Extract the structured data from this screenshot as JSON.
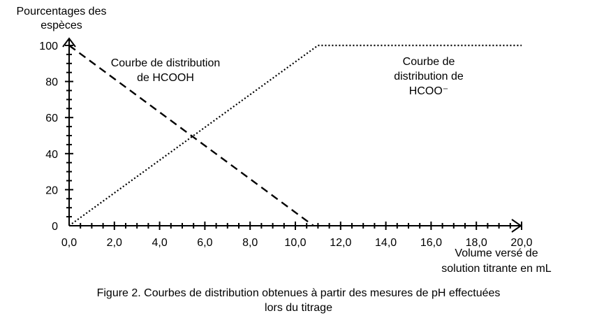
{
  "chart_data": {
    "type": "line",
    "ylabel": [
      "Pourcentages des",
      "espèces"
    ],
    "xlabel": [
      "Volume versé de",
      "solution titrante en mL"
    ],
    "xlim": [
      0,
      20
    ],
    "ylim": [
      0,
      100
    ],
    "x_ticks": [
      "0,0",
      "2,0",
      "4,0",
      "6,0",
      "8,0",
      "10,0",
      "12,0",
      "14,0",
      "16,0",
      "18,0",
      "20,0"
    ],
    "y_ticks": [
      "0",
      "20",
      "40",
      "60",
      "80",
      "100"
    ],
    "grid": false,
    "series": [
      {
        "name": "Courbe de distribution de HCOOH",
        "style": "dashed",
        "x": [
          0,
          10.8
        ],
        "y": [
          100,
          0
        ]
      },
      {
        "name": "Courbe de distribution de HCOO⁻",
        "style": "dotted",
        "x": [
          0,
          11.0,
          20.0
        ],
        "y": [
          0,
          100,
          100
        ]
      }
    ],
    "annotations": [
      {
        "lines": [
          "Courbe de distribution",
          "de HCOOH"
        ],
        "series": 0
      },
      {
        "lines": [
          "Courbe de",
          "distribution de",
          "HCOO⁻"
        ],
        "series": 1
      }
    ]
  },
  "caption": {
    "line1": "Figure 2. Courbes de distribution obtenues à partir des mesures de pH effectuées",
    "line2": "lors du titrage"
  }
}
